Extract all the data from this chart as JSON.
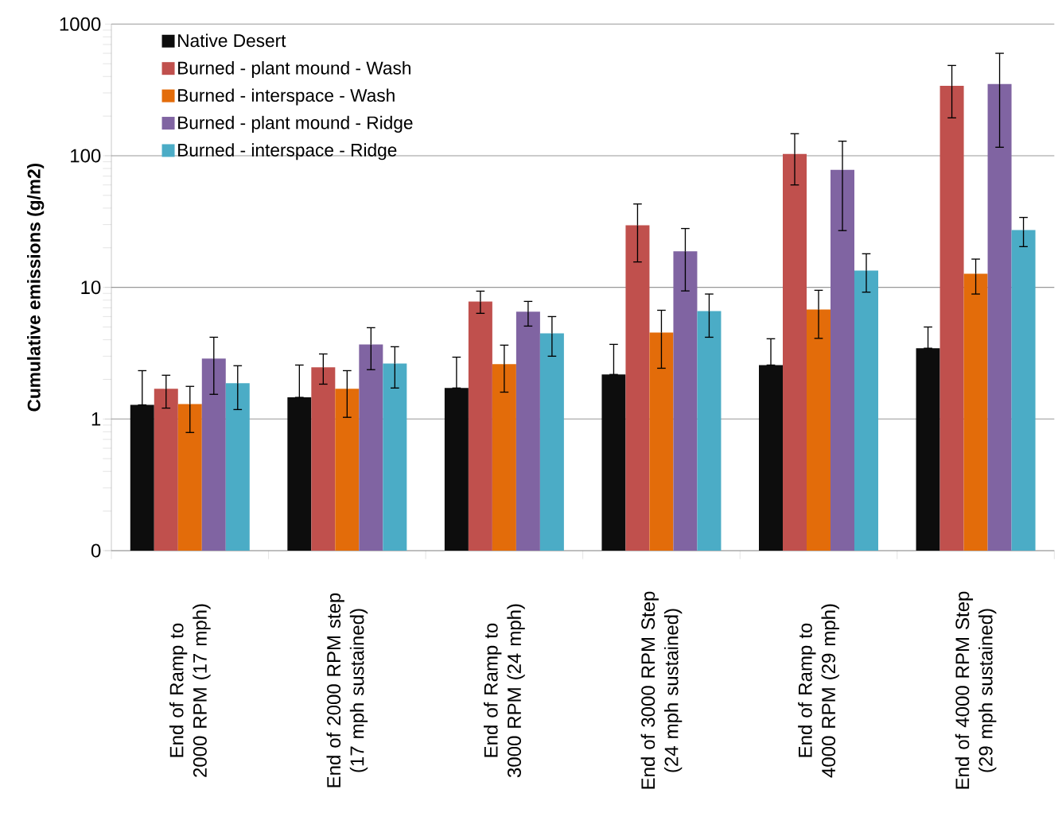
{
  "chart_data": {
    "type": "bar",
    "ylabel": "Cumulative emissions (g/m2)",
    "categories": [
      "End of Ramp to 2000 RPM (17 mph)",
      "End of 2000 RPM step (17 mph sustained)",
      "End of Ramp to 3000 RPM (24 mph)",
      "End of 3000 RPM Step (24 mph sustained)",
      "End of Ramp to 4000 RPM (29 mph)",
      "End of 4000 RPM Step (29 mph sustained)"
    ],
    "series": [
      {
        "name": "Native Desert",
        "color": "#0d0d0d",
        "values": [
          1.28,
          1.46,
          1.72,
          2.18,
          2.57,
          3.45
        ],
        "errors": [
          [
            1.28,
            2.33
          ],
          [
            1.46,
            2.57
          ],
          [
            1.72,
            2.95
          ],
          [
            2.18,
            3.69
          ],
          [
            2.57,
            4.07
          ],
          [
            3.45,
            5.0
          ]
        ]
      },
      {
        "name": "Burned - plant mound - Wash",
        "color": "#c0504d",
        "values": [
          1.7,
          2.47,
          7.8,
          29.6,
          103,
          340
        ],
        "errors": [
          [
            1.21,
            2.15
          ],
          [
            1.84,
            3.12
          ],
          [
            6.35,
            9.36
          ],
          [
            15.6,
            43
          ],
          [
            60,
            147
          ],
          [
            194,
            485
          ]
        ]
      },
      {
        "name": "Burned - interspace - Wash",
        "color": "#e36c0a",
        "values": [
          1.3,
          1.7,
          2.61,
          4.54,
          6.8,
          12.7
        ],
        "errors": [
          [
            0.79,
            1.77
          ],
          [
            1.03,
            2.33
          ],
          [
            1.6,
            3.64
          ],
          [
            2.43,
            6.7
          ],
          [
            4.1,
            9.5
          ],
          [
            8.9,
            16.4
          ]
        ]
      },
      {
        "name": "Burned - plant mound - Ridge",
        "color": "#8064a2",
        "values": [
          2.88,
          3.69,
          6.53,
          18.8,
          78,
          350
        ],
        "errors": [
          [
            1.54,
            4.18
          ],
          [
            2.37,
            4.94
          ],
          [
            5.08,
            7.82
          ],
          [
            9.4,
            28
          ],
          [
            27,
            129
          ],
          [
            116,
            600
          ]
        ]
      },
      {
        "name": "Burned - interspace - Ridge",
        "color": "#4bacc6",
        "values": [
          1.87,
          2.64,
          4.48,
          6.6,
          13.4,
          27.3
        ],
        "errors": [
          [
            1.18,
            2.54
          ],
          [
            1.72,
            3.54
          ],
          [
            3.0,
            6.0
          ],
          [
            4.18,
            8.9
          ],
          [
            9.2,
            18
          ],
          [
            20.4,
            34
          ]
        ]
      }
    ],
    "log": "y",
    "ylim": [
      0.1,
      1000
    ],
    "yticks": [
      {
        "value": 0.1,
        "label": "0"
      },
      1,
      10,
      100,
      1000
    ],
    "grid": "y",
    "legend": "top left"
  }
}
